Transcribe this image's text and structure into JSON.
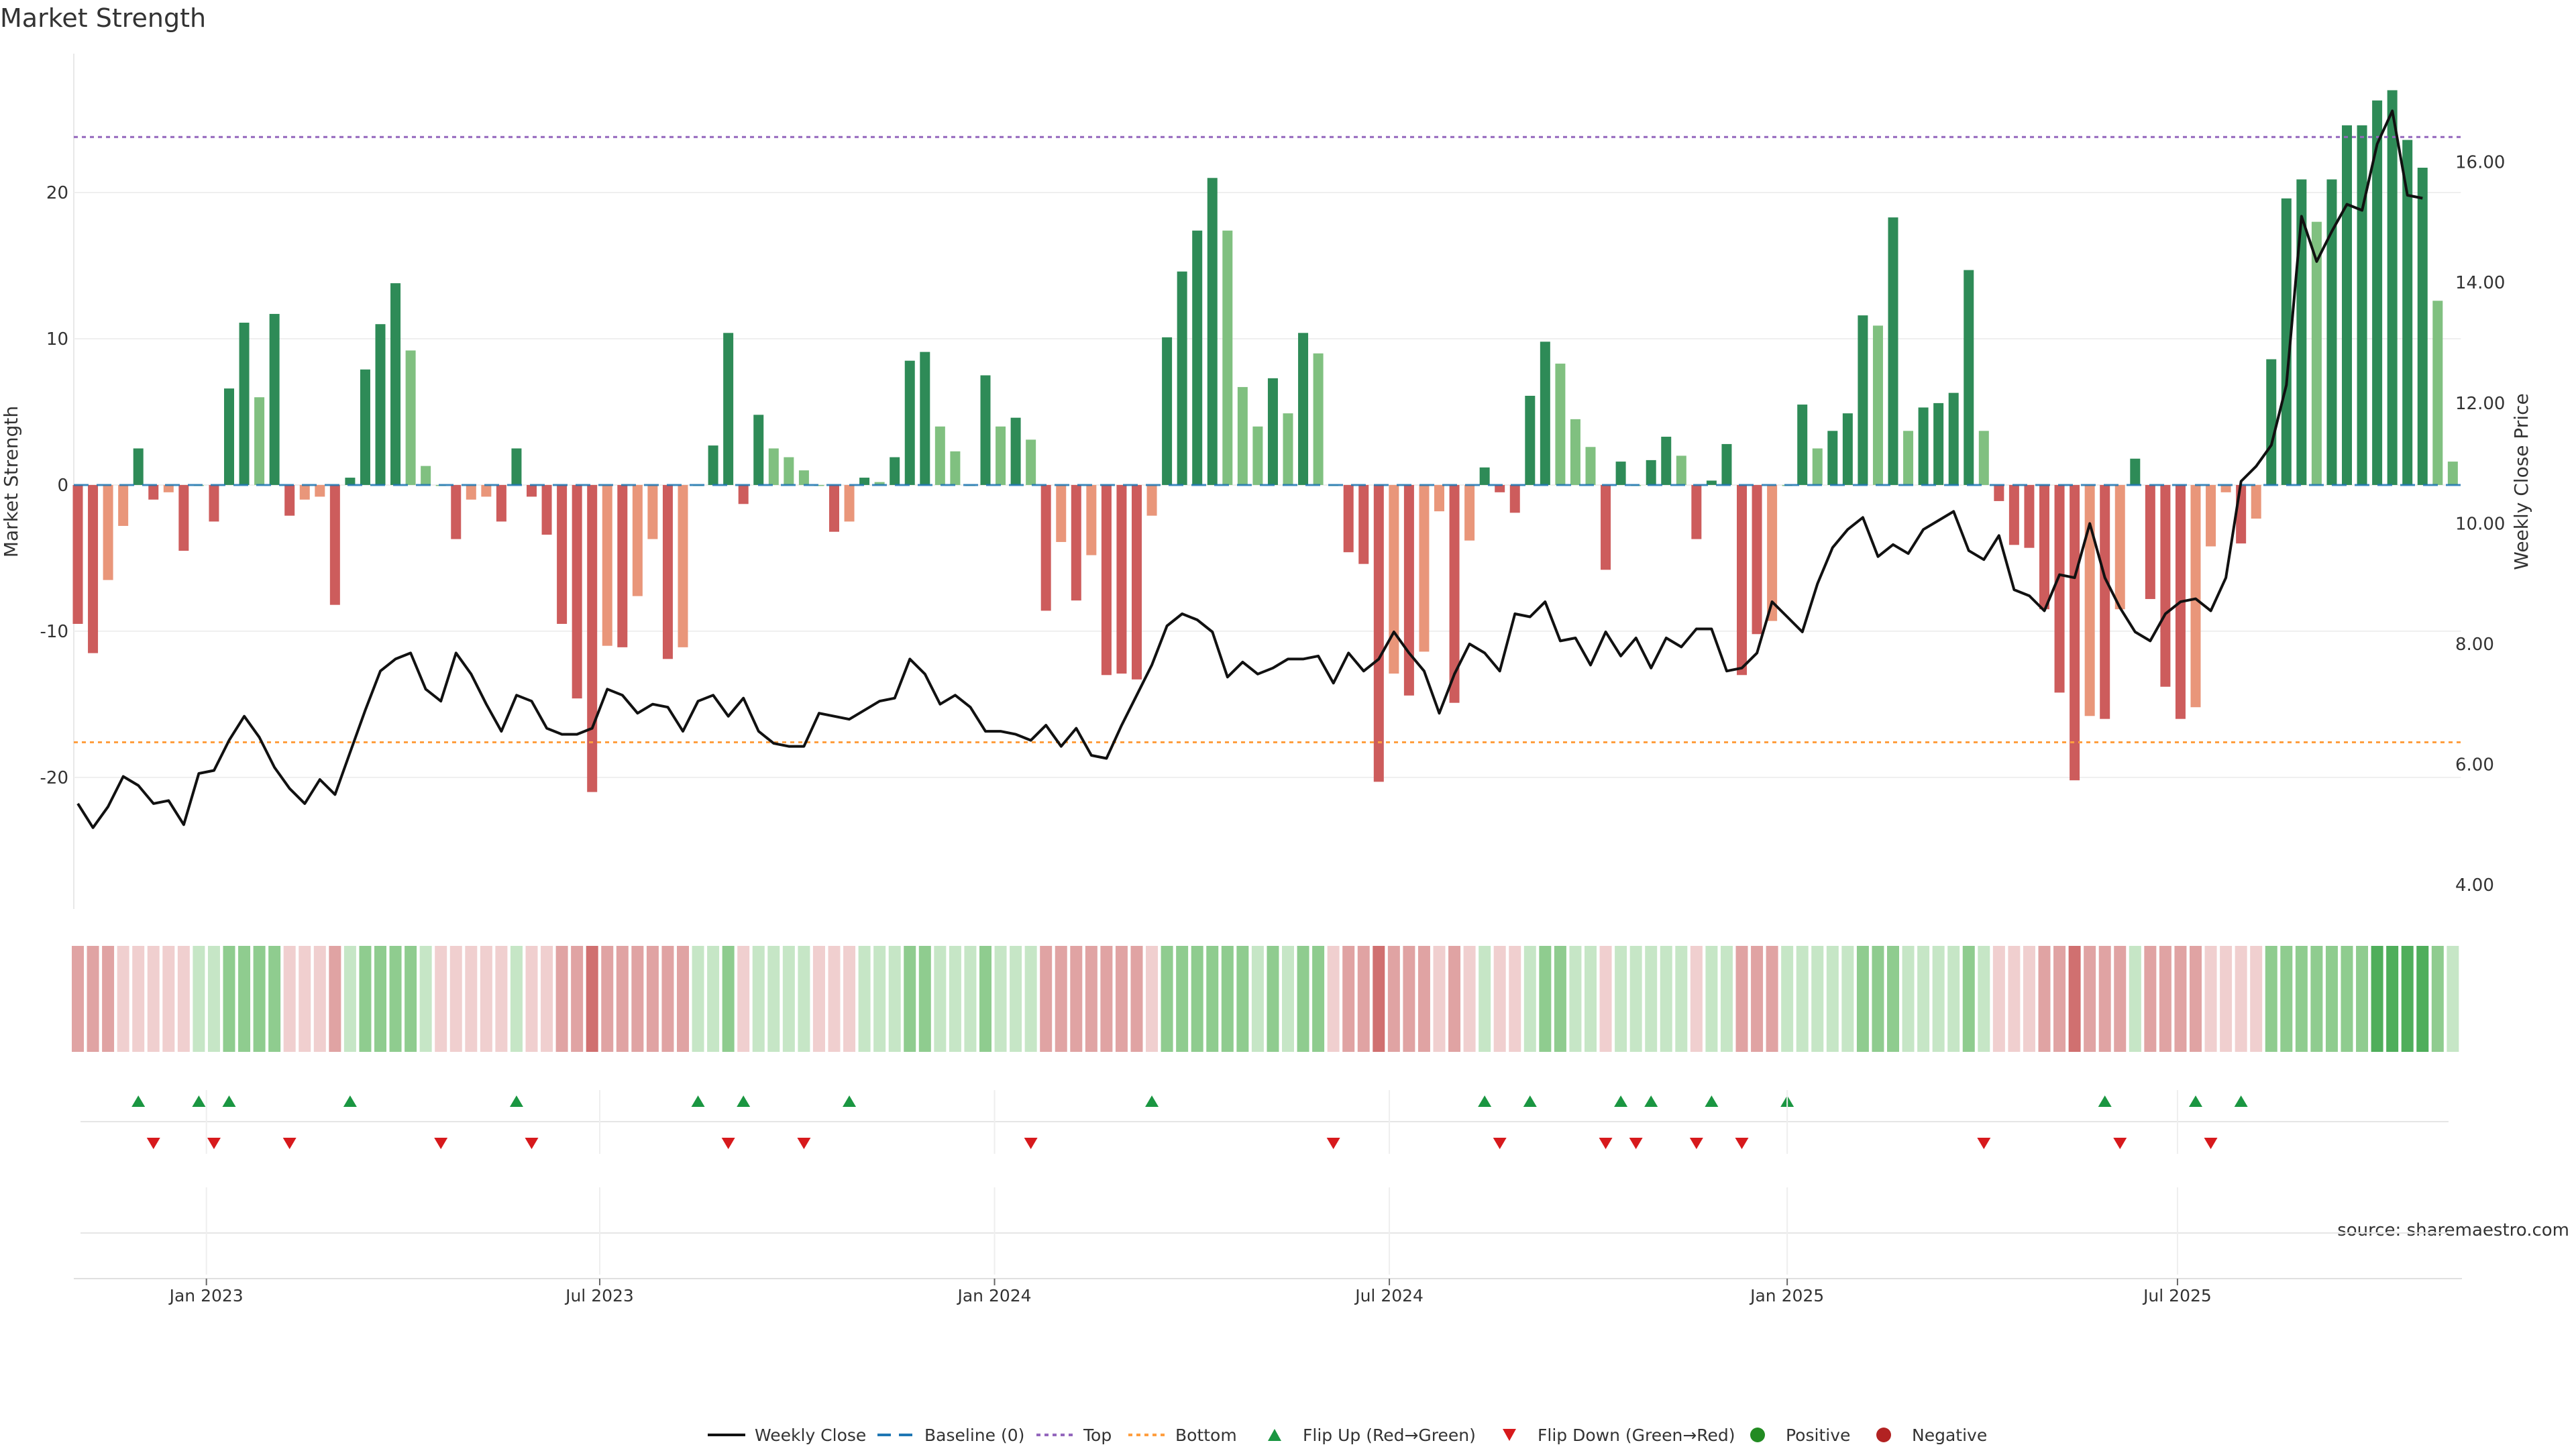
{
  "chart_data": {
    "type": "bar+line",
    "title": "Market Strength",
    "ylabel_left": "Market Strength",
    "ylabel_right": "Weekly Close Price",
    "source": "source: sharemaestro.com",
    "x_tick_labels": [
      "Jan 2023",
      "Jul 2023",
      "Jan 2024",
      "Jul 2024",
      "Jan 2025",
      "Jul 2025"
    ],
    "x_tick_weeks": [
      8.5,
      34.5,
      60.6,
      86.7,
      113,
      138.8
    ],
    "left_yticks": [
      20,
      10,
      0,
      -10,
      -20
    ],
    "left_ylim": [
      -29,
      29.5
    ],
    "right_yticks": [
      "16.00",
      "14.00",
      "12.00",
      "10.00",
      "8.00",
      "6.00",
      "4.00"
    ],
    "right_ylim": [
      3.6,
      17.8
    ],
    "top_line": 23.8,
    "bottom_line": -17.6,
    "baseline": 0,
    "strength": [
      -9.5,
      -11.5,
      -6.5,
      -2.8,
      2.5,
      -1,
      -0.5,
      -4.5,
      0,
      -2.5,
      6.6,
      11.1,
      6,
      11.7,
      -2.1,
      -1,
      -0.8,
      -8.2,
      0.5,
      7.9,
      11,
      13.8,
      9.2,
      1.3,
      0,
      -3.7,
      -1,
      -0.8,
      -2.5,
      2.5,
      -0.8,
      -3.4,
      -9.5,
      -14.6,
      -21,
      -11,
      -11.1,
      -7.6,
      -3.7,
      -11.9,
      -11.1,
      0,
      2.7,
      10.4,
      -1.3,
      4.8,
      2.5,
      1.9,
      1,
      0,
      -3.2,
      -2.5,
      0.5,
      0.2,
      1.9,
      8.5,
      9.1,
      4,
      2.3,
      0,
      7.5,
      4,
      4.6,
      3.1,
      -8.6,
      -3.9,
      -7.9,
      -4.8,
      -13,
      -12.9,
      -13.3,
      -2.1,
      10.1,
      14.6,
      17.4,
      21,
      17.4,
      6.7,
      4,
      7.3,
      4.9,
      10.4,
      9,
      0,
      -4.6,
      -5.4,
      -20.3,
      -12.9,
      -14.4,
      -11.4,
      -1.8,
      -14.9,
      -3.8,
      1.2,
      -0.5,
      -1.9,
      6.1,
      9.8,
      8.3,
      4.5,
      2.6,
      -5.8,
      1.6,
      0,
      1.7,
      3.3,
      2,
      -3.7,
      0.3,
      2.8,
      -13,
      -10.2,
      -9.3,
      0,
      5.5,
      2.5,
      3.7,
      4.9,
      11.6,
      10.9,
      18.3,
      3.7,
      5.3,
      5.6,
      6.3,
      14.7,
      3.7,
      -1.1,
      -4.1,
      -4.3,
      -8.5,
      -14.2,
      -20.2,
      -15.8,
      -16,
      -8.5,
      1.8,
      -7.8,
      -13.8,
      -16,
      -15.2,
      -4.2,
      -0.5,
      -4,
      -2.3,
      8.6,
      19.6,
      20.9,
      18,
      20.9,
      24.6,
      24.6,
      26.3,
      27,
      23.6,
      21.7,
      12.6,
      1.6
    ],
    "strength_shade": [
      "dark",
      "dark",
      "light",
      "light",
      "dark",
      "dark",
      "light",
      "dark",
      "light",
      "dark",
      "dark",
      "dark",
      "light",
      "dark",
      "dark",
      "light",
      "light",
      "dark",
      "dark",
      "dark",
      "dark",
      "dark",
      "light",
      "light",
      "light",
      "dark",
      "light",
      "light",
      "dark",
      "dark",
      "dark",
      "dark",
      "dark",
      "dark",
      "dark",
      "light",
      "dark",
      "light",
      "light",
      "dark",
      "light",
      "light",
      "dark",
      "dark",
      "dark",
      "dark",
      "light",
      "light",
      "light",
      "light",
      "dark",
      "light",
      "dark",
      "light",
      "dark",
      "dark",
      "dark",
      "light",
      "light",
      "light",
      "dark",
      "light",
      "dark",
      "light",
      "dark",
      "light",
      "dark",
      "light",
      "dark",
      "dark",
      "dark",
      "light",
      "dark",
      "dark",
      "dark",
      "dark",
      "light",
      "light",
      "light",
      "dark",
      "light",
      "dark",
      "light",
      "light",
      "dark",
      "dark",
      "dark",
      "light",
      "dark",
      "light",
      "light",
      "dark",
      "light",
      "dark",
      "dark",
      "dark",
      "dark",
      "dark",
      "light",
      "light",
      "light",
      "dark",
      "dark",
      "light",
      "dark",
      "dark",
      "light",
      "dark",
      "dark",
      "dark",
      "dark",
      "dark",
      "light",
      "light",
      "dark",
      "light",
      "dark",
      "dark",
      "dark",
      "light",
      "dark",
      "light",
      "dark",
      "dark",
      "dark",
      "dark",
      "light",
      "dark",
      "dark",
      "dark",
      "dark",
      "dark",
      "dark",
      "light",
      "dark",
      "light",
      "dark",
      "dark",
      "dark",
      "dark",
      "light",
      "light",
      "light",
      "dark",
      "light",
      "dark",
      "dark",
      "dark",
      "light",
      "dark",
      "dark",
      "dark",
      "dark",
      "dark",
      "dark",
      "dark",
      "light",
      "light",
      "light",
      "light"
    ],
    "weekly_close": [
      5.35,
      4.95,
      5.3,
      5.8,
      5.65,
      5.35,
      5.4,
      5.0,
      5.85,
      5.9,
      6.4,
      6.8,
      6.45,
      5.95,
      5.6,
      5.35,
      5.75,
      5.5,
      6.2,
      6.9,
      7.55,
      7.75,
      7.85,
      7.25,
      7.05,
      7.85,
      7.5,
      7.0,
      6.55,
      7.15,
      7.05,
      6.6,
      6.5,
      6.5,
      6.6,
      7.25,
      7.15,
      6.85,
      7.0,
      6.95,
      6.55,
      7.05,
      7.15,
      6.8,
      7.1,
      6.55,
      6.35,
      6.3,
      6.3,
      6.85,
      6.8,
      6.75,
      6.9,
      7.05,
      7.1,
      7.75,
      7.5,
      7.0,
      7.15,
      6.95,
      6.55,
      6.55,
      6.5,
      6.4,
      6.65,
      6.3,
      6.6,
      6.15,
      6.1,
      6.65,
      7.15,
      7.65,
      8.3,
      8.5,
      8.4,
      8.2,
      7.45,
      7.7,
      7.5,
      7.6,
      7.75,
      7.75,
      7.8,
      7.35,
      7.85,
      7.55,
      7.75,
      8.2,
      7.85,
      7.55,
      6.85,
      7.5,
      8.0,
      7.85,
      7.55,
      8.5,
      8.45,
      8.7,
      8.05,
      8.1,
      7.65,
      8.2,
      7.8,
      8.1,
      7.6,
      8.1,
      7.95,
      8.25,
      8.25,
      7.55,
      7.6,
      7.85,
      8.7,
      8.45,
      8.2,
      9.0,
      9.6,
      9.9,
      10.1,
      9.45,
      9.65,
      9.5,
      9.9,
      10.05,
      10.2,
      9.55,
      9.4,
      9.8,
      8.9,
      8.8,
      8.55,
      9.15,
      9.1,
      10.0,
      9.1,
      8.6,
      8.2,
      8.05,
      8.5,
      8.7,
      8.75,
      8.55,
      9.1,
      10.7,
      10.95,
      11.3,
      12.3,
      15.1,
      14.35,
      14.85,
      15.3,
      15.2,
      16.3,
      16.85,
      15.45,
      15.4
    ],
    "pill_strip": [
      -2,
      -2,
      -2,
      -1,
      -1,
      -1,
      -1,
      -1,
      1,
      1,
      2,
      2,
      2,
      2,
      -1,
      -1,
      -1,
      -2,
      1,
      2,
      2,
      2,
      2,
      1,
      -1,
      -1,
      -1,
      -1,
      -1,
      1,
      -1,
      -1,
      -2,
      -2,
      -3,
      -2,
      -2,
      -2,
      -2,
      -2,
      -2,
      1,
      1,
      2,
      -1,
      1,
      1,
      1,
      1,
      -1,
      -1,
      -1,
      1,
      1,
      1,
      2,
      2,
      1,
      1,
      1,
      2,
      1,
      1,
      1,
      -2,
      -2,
      -2,
      -2,
      -2,
      -2,
      -2,
      -1,
      2,
      2,
      2,
      2,
      2,
      2,
      1,
      2,
      1,
      2,
      2,
      -1,
      -2,
      -2,
      -3,
      -2,
      -2,
      -2,
      -1,
      -2,
      -1,
      1,
      -1,
      -1,
      1,
      2,
      2,
      1,
      1,
      -1,
      1,
      1,
      1,
      1,
      1,
      -1,
      1,
      1,
      -2,
      -2,
      -2,
      1,
      1,
      1,
      1,
      1,
      2,
      2,
      2,
      1,
      1,
      1,
      1,
      2,
      1,
      -1,
      -1,
      -1,
      -2,
      -2,
      -3,
      -2,
      -2,
      -2,
      1,
      -2,
      -2,
      -2,
      -2,
      -1,
      -1,
      -1,
      -1,
      2,
      2,
      2,
      2,
      2,
      2,
      2,
      3,
      3,
      3,
      3,
      2,
      1
    ],
    "flip_up_weeks": [
      4,
      8,
      10,
      18,
      29,
      41,
      44,
      51,
      71,
      93,
      96,
      102,
      104,
      108,
      113,
      134,
      140,
      143
    ],
    "flip_down_weeks": [
      5,
      9,
      14,
      24,
      30,
      43,
      48,
      63,
      83,
      94,
      101,
      103,
      107,
      110,
      126,
      135,
      141
    ],
    "legend": [
      "Weekly Close",
      "Baseline (0)",
      "Top",
      "Bottom",
      "Flip Up (Red→Green)",
      "Flip Down (Green→Red)",
      "Positive",
      "Negative"
    ],
    "colors": {
      "pos_dark": "#2e8b57",
      "pos_light": "#80c080",
      "neg_dark": "#cd5c5c",
      "neg_light": "#e9967a",
      "line": "#111111",
      "baseline": "#1f77b4",
      "top": "#9467bd",
      "bottom": "#ff9f40",
      "flip_up": "#1a9641",
      "flip_down": "#d7191c",
      "positive_dot": "#228b22",
      "negative_dot": "#b22222"
    }
  }
}
